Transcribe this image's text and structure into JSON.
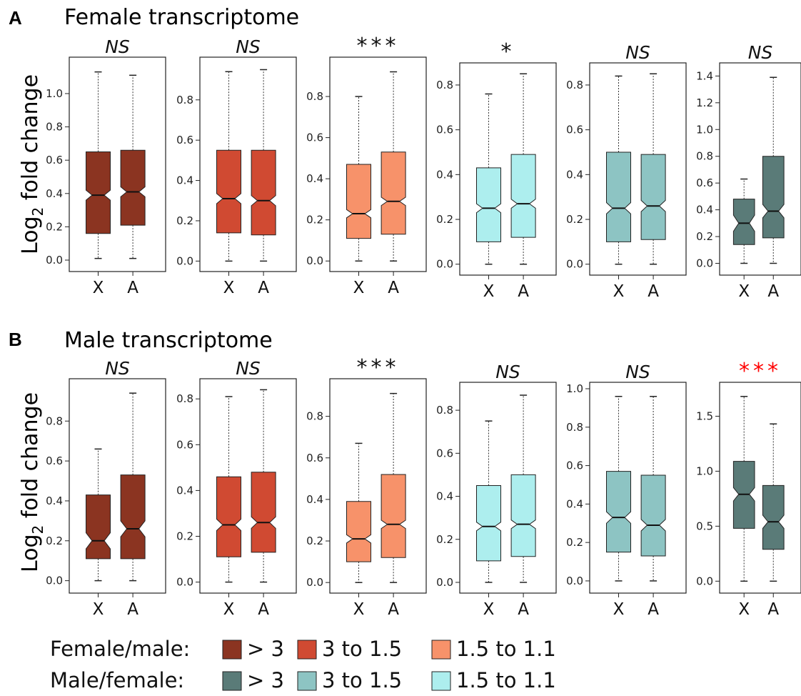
{
  "panels": [
    {
      "letter": "A",
      "title": "Female transcriptome",
      "ylabel_main": "Log",
      "ylabel_sub": "2",
      "ylabel_rest": " fold change"
    },
    {
      "letter": "B",
      "title": "Male transcriptome",
      "ylabel_main": "Log",
      "ylabel_sub": "2",
      "ylabel_rest": " fold change"
    }
  ],
  "colors": {
    "fm_gt3": "#8b3421",
    "fm_3to15": "#d04a32",
    "fm_15to11": "#f7926a",
    "mf_gt3": "#5a7b78",
    "mf_3to15": "#8dc4c3",
    "mf_15to11": "#adeeee",
    "significant_red": "#ff0000",
    "text": "#111111"
  },
  "legend": [
    {
      "label": "Female/male:",
      "items": [
        {
          "text": "> 3",
          "color_key": "fm_gt3"
        },
        {
          "text": "3 to 1.5",
          "color_key": "fm_3to15"
        },
        {
          "text": "1.5 to 1.1",
          "color_key": "fm_15to11"
        }
      ]
    },
    {
      "label": "Male/female:",
      "items": [
        {
          "text": "> 3",
          "color_key": "mf_gt3"
        },
        {
          "text": "3 to 1.5",
          "color_key": "mf_3to15"
        },
        {
          "text": "1.5 to 1.1",
          "color_key": "mf_15to11"
        }
      ]
    }
  ],
  "chart_data": [
    {
      "type": "box",
      "panel": "A",
      "categories": [
        "X",
        "A"
      ],
      "significance": "NS",
      "sig_color": "text",
      "color_key": "fm_gt3",
      "ylim": [
        -0.03,
        1.18
      ],
      "yticks": [
        0.0,
        0.2,
        0.4,
        0.6,
        0.8,
        1.0
      ],
      "tick_labels": [
        "0.0",
        "0.2",
        "0.4",
        "0.6",
        "0.8",
        "1.0"
      ],
      "boxes": [
        {
          "lower_whisker": 0.01,
          "q1": 0.16,
          "median": 0.39,
          "q3": 0.65,
          "upper_whisker": 1.13,
          "notch": 0.03
        },
        {
          "lower_whisker": 0.01,
          "q1": 0.21,
          "median": 0.41,
          "q3": 0.66,
          "upper_whisker": 1.11,
          "notch": 0.03
        }
      ]
    },
    {
      "type": "box",
      "panel": "A",
      "categories": [
        "X",
        "A"
      ],
      "significance": "NS",
      "sig_color": "text",
      "color_key": "fm_3to15",
      "ylim": [
        -0.02,
        0.98
      ],
      "yticks": [
        0.0,
        0.2,
        0.4,
        0.6,
        0.8
      ],
      "tick_labels": [
        "0.0",
        "0.2",
        "0.4",
        "0.6",
        "0.8"
      ],
      "boxes": [
        {
          "lower_whisker": 0.0,
          "q1": 0.14,
          "median": 0.31,
          "q3": 0.55,
          "upper_whisker": 0.94,
          "notch": 0.025
        },
        {
          "lower_whisker": 0.0,
          "q1": 0.13,
          "median": 0.3,
          "q3": 0.55,
          "upper_whisker": 0.95,
          "notch": 0.025
        }
      ]
    },
    {
      "type": "box",
      "panel": "A",
      "categories": [
        "X",
        "A"
      ],
      "significance": "***",
      "sig_color": "text",
      "color_key": "fm_15to11",
      "ylim": [
        -0.02,
        0.96
      ],
      "yticks": [
        0.0,
        0.2,
        0.4,
        0.6,
        0.8
      ],
      "tick_labels": [
        "0.0",
        "0.2",
        "0.4",
        "0.6",
        "0.8"
      ],
      "boxes": [
        {
          "lower_whisker": 0.0,
          "q1": 0.11,
          "median": 0.23,
          "q3": 0.47,
          "upper_whisker": 0.8,
          "notch": 0.02
        },
        {
          "lower_whisker": 0.0,
          "q1": 0.13,
          "median": 0.29,
          "q3": 0.53,
          "upper_whisker": 0.92,
          "notch": 0.02
        }
      ]
    },
    {
      "type": "box",
      "panel": "A",
      "categories": [
        "X",
        "A"
      ],
      "significance": "*",
      "sig_color": "text",
      "color_key": "mf_15to11",
      "ylim": [
        -0.02,
        0.87
      ],
      "yticks": [
        0.0,
        0.2,
        0.4,
        0.6,
        0.8
      ],
      "tick_labels": [
        "0.0",
        "0.2",
        "0.4",
        "0.6",
        "0.8"
      ],
      "boxes": [
        {
          "lower_whisker": 0.0,
          "q1": 0.1,
          "median": 0.25,
          "q3": 0.43,
          "upper_whisker": 0.76,
          "notch": 0.02
        },
        {
          "lower_whisker": 0.0,
          "q1": 0.12,
          "median": 0.27,
          "q3": 0.49,
          "upper_whisker": 0.85,
          "notch": 0.02
        }
      ]
    },
    {
      "type": "box",
      "panel": "A",
      "categories": [
        "X",
        "A"
      ],
      "significance": "NS",
      "sig_color": "text",
      "color_key": "mf_3to15",
      "ylim": [
        -0.02,
        0.87
      ],
      "yticks": [
        0.0,
        0.2,
        0.4,
        0.6,
        0.8
      ],
      "tick_labels": [
        "0.0",
        "0.2",
        "0.4",
        "0.6",
        "0.8"
      ],
      "boxes": [
        {
          "lower_whisker": 0.0,
          "q1": 0.1,
          "median": 0.25,
          "q3": 0.5,
          "upper_whisker": 0.84,
          "notch": 0.025
        },
        {
          "lower_whisker": 0.0,
          "q1": 0.11,
          "median": 0.26,
          "q3": 0.49,
          "upper_whisker": 0.85,
          "notch": 0.025
        }
      ]
    },
    {
      "type": "box",
      "panel": "A",
      "categories": [
        "X",
        "A"
      ],
      "significance": "NS",
      "sig_color": "text",
      "color_key": "mf_gt3",
      "ylim": [
        -0.04,
        1.45
      ],
      "yticks": [
        0.0,
        0.2,
        0.4,
        0.6,
        0.8,
        1.0,
        1.2,
        1.4
      ],
      "tick_labels": [
        "0.0",
        "0.2",
        "0.4",
        "0.6",
        "0.8",
        "1.0",
        "1.2",
        "1.4"
      ],
      "boxes": [
        {
          "lower_whisker": 0.0,
          "q1": 0.14,
          "median": 0.3,
          "q3": 0.48,
          "upper_whisker": 0.63,
          "notch": 0.06
        },
        {
          "lower_whisker": 0.0,
          "q1": 0.19,
          "median": 0.39,
          "q3": 0.8,
          "upper_whisker": 1.39,
          "notch": 0.05
        }
      ]
    },
    {
      "type": "box",
      "panel": "B",
      "categories": [
        "X",
        "A"
      ],
      "significance": "NS",
      "sig_color": "text",
      "color_key": "fm_gt3",
      "ylim": [
        -0.03,
        0.98
      ],
      "yticks": [
        0.0,
        0.2,
        0.4,
        0.6,
        0.8
      ],
      "tick_labels": [
        "0.0",
        "0.2",
        "0.4",
        "0.6",
        "0.8"
      ],
      "boxes": [
        {
          "lower_whisker": 0.0,
          "q1": 0.11,
          "median": 0.2,
          "q3": 0.43,
          "upper_whisker": 0.66,
          "notch": 0.04
        },
        {
          "lower_whisker": 0.0,
          "q1": 0.11,
          "median": 0.26,
          "q3": 0.53,
          "upper_whisker": 0.94,
          "notch": 0.04
        }
      ]
    },
    {
      "type": "box",
      "panel": "B",
      "categories": [
        "X",
        "A"
      ],
      "significance": "NS",
      "sig_color": "text",
      "color_key": "fm_3to15",
      "ylim": [
        -0.02,
        0.86
      ],
      "yticks": [
        0.0,
        0.2,
        0.4,
        0.6,
        0.8
      ],
      "tick_labels": [
        "0.0",
        "0.2",
        "0.4",
        "0.6",
        "0.8"
      ],
      "boxes": [
        {
          "lower_whisker": 0.0,
          "q1": 0.11,
          "median": 0.25,
          "q3": 0.46,
          "upper_whisker": 0.81,
          "notch": 0.025
        },
        {
          "lower_whisker": 0.0,
          "q1": 0.13,
          "median": 0.26,
          "q3": 0.48,
          "upper_whisker": 0.84,
          "notch": 0.025
        }
      ]
    },
    {
      "type": "box",
      "panel": "B",
      "categories": [
        "X",
        "A"
      ],
      "significance": "***",
      "sig_color": "text",
      "color_key": "fm_15to11",
      "ylim": [
        -0.02,
        0.95
      ],
      "yticks": [
        0.0,
        0.2,
        0.4,
        0.6,
        0.8
      ],
      "tick_labels": [
        "0.0",
        "0.2",
        "0.4",
        "0.6",
        "0.8"
      ],
      "boxes": [
        {
          "lower_whisker": 0.0,
          "q1": 0.1,
          "median": 0.21,
          "q3": 0.39,
          "upper_whisker": 0.67,
          "notch": 0.02
        },
        {
          "lower_whisker": 0.0,
          "q1": 0.12,
          "median": 0.28,
          "q3": 0.52,
          "upper_whisker": 0.91,
          "notch": 0.02
        }
      ]
    },
    {
      "type": "box",
      "panel": "B",
      "categories": [
        "X",
        "A"
      ],
      "significance": "NS",
      "sig_color": "text",
      "color_key": "mf_15to11",
      "ylim": [
        -0.02,
        0.9
      ],
      "yticks": [
        0.0,
        0.2,
        0.4,
        0.6,
        0.8
      ],
      "tick_labels": [
        "0.0",
        "0.2",
        "0.4",
        "0.6",
        "0.8"
      ],
      "boxes": [
        {
          "lower_whisker": 0.0,
          "q1": 0.1,
          "median": 0.26,
          "q3": 0.45,
          "upper_whisker": 0.75,
          "notch": 0.02
        },
        {
          "lower_whisker": 0.0,
          "q1": 0.12,
          "median": 0.27,
          "q3": 0.5,
          "upper_whisker": 0.87,
          "notch": 0.02
        }
      ]
    },
    {
      "type": "box",
      "panel": "B",
      "categories": [
        "X",
        "A"
      ],
      "significance": "NS",
      "sig_color": "text",
      "color_key": "mf_3to15",
      "ylim": [
        -0.03,
        1.0
      ],
      "yticks": [
        0.0,
        0.2,
        0.4,
        0.6,
        0.8,
        1.0
      ],
      "tick_labels": [
        "0.0",
        "0.2",
        "0.4",
        "0.6",
        "0.8",
        "1.0"
      ],
      "boxes": [
        {
          "lower_whisker": 0.0,
          "q1": 0.15,
          "median": 0.33,
          "q3": 0.57,
          "upper_whisker": 0.96,
          "notch": 0.03
        },
        {
          "lower_whisker": 0.0,
          "q1": 0.13,
          "median": 0.29,
          "q3": 0.55,
          "upper_whisker": 0.96,
          "notch": 0.03
        }
      ]
    },
    {
      "type": "box",
      "panel": "B",
      "categories": [
        "X",
        "A"
      ],
      "significance": "***",
      "sig_color": "significant_red",
      "color_key": "mf_gt3",
      "ylim": [
        -0.05,
        1.75
      ],
      "yticks": [
        0.0,
        0.5,
        1.0,
        1.5
      ],
      "tick_labels": [
        "0.0",
        "0.5",
        "1.0",
        "1.5"
      ],
      "boxes": [
        {
          "lower_whisker": 0.0,
          "q1": 0.48,
          "median": 0.79,
          "q3": 1.09,
          "upper_whisker": 1.68,
          "notch": 0.06
        },
        {
          "lower_whisker": 0.0,
          "q1": 0.29,
          "median": 0.54,
          "q3": 0.87,
          "upper_whisker": 1.43,
          "notch": 0.06
        }
      ]
    }
  ]
}
